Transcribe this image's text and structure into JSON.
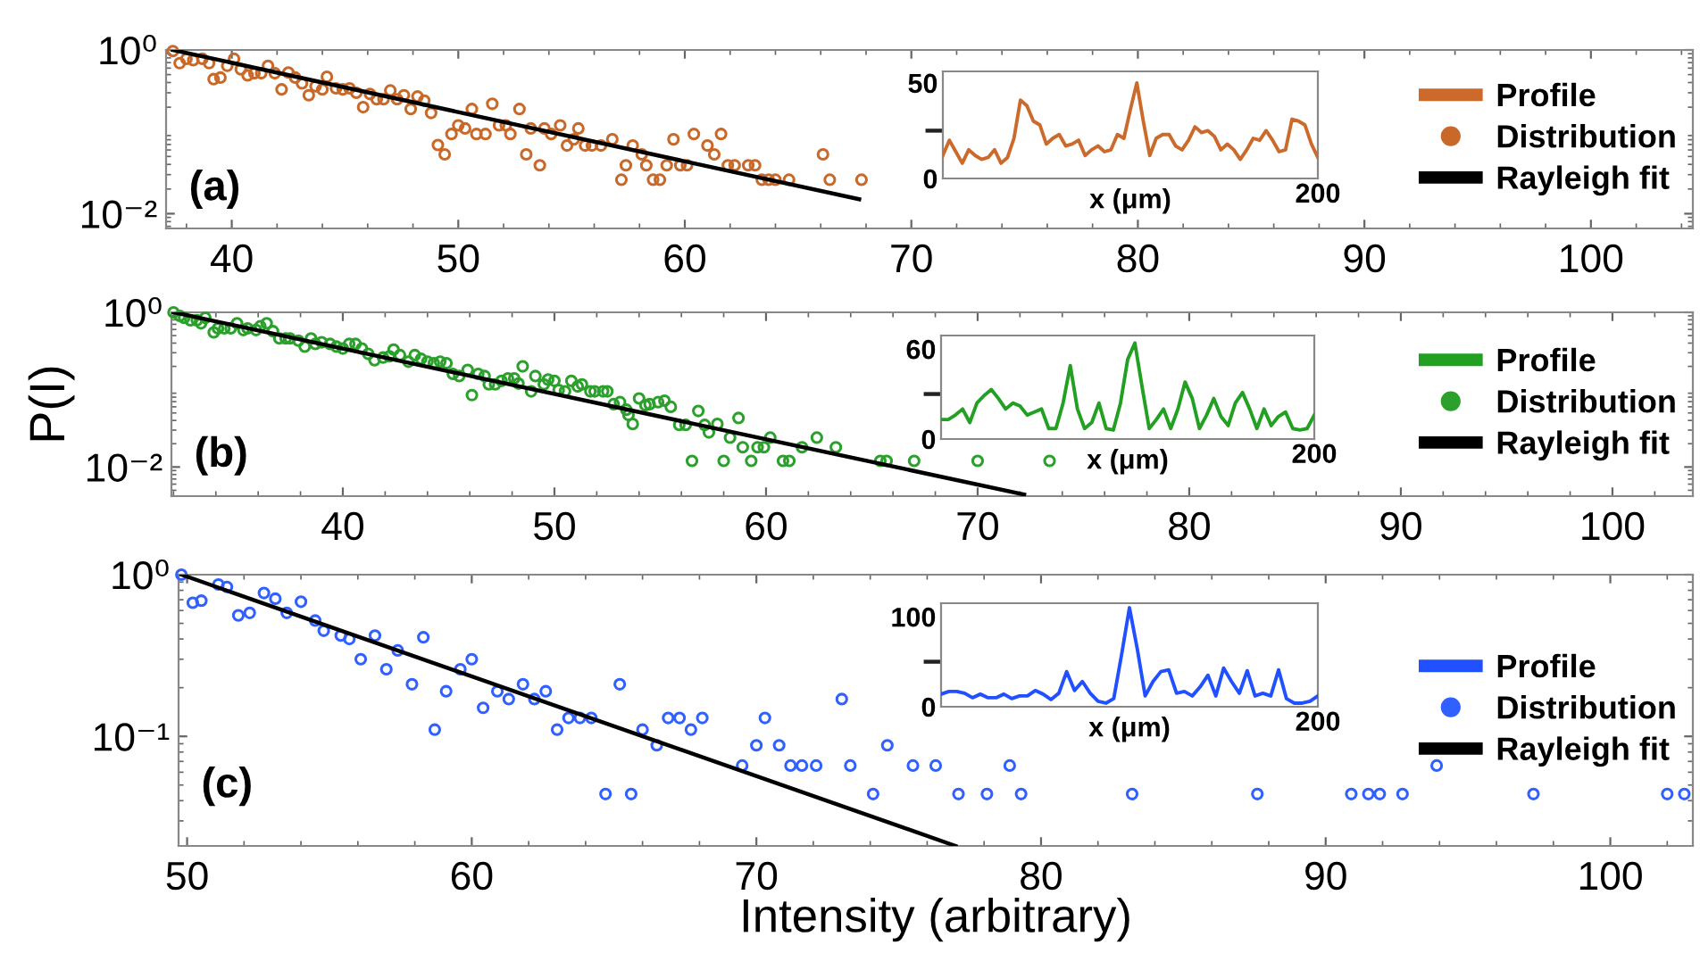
{
  "chart_data": [
    {
      "type": "scatter",
      "log": "y",
      "legend": "right",
      "annotations": [
        "(a)"
      ],
      "xlim": [
        37.1,
        104.5
      ],
      "ylim": [
        0.0066,
        1
      ],
      "xticks": [
        40,
        50,
        60,
        70,
        80,
        90,
        100
      ],
      "yticks": [
        {
          "value": 1,
          "label": "10⁰"
        },
        {
          "value": 0.01,
          "label": "10⁻²"
        }
      ],
      "series": [
        {
          "name": "Distribution",
          "type": "scatter",
          "marker": "circle",
          "color": "#c8692a",
          "x": [
            37.4,
            37.7,
            38.0,
            38.3,
            38.7,
            39.0,
            39.2,
            39.5,
            39.8,
            40.1,
            40.4,
            40.7,
            41.0,
            41.3,
            41.6,
            41.9,
            42.2,
            42.5,
            42.8,
            43.1,
            43.4,
            43.7,
            44.0,
            44.2,
            44.6,
            44.9,
            45.2,
            45.5,
            45.8,
            46.1,
            46.4,
            46.7,
            47.0,
            47.3,
            47.6,
            47.9,
            48.2,
            48.5,
            48.8,
            49.1,
            49.4,
            49.7,
            50.0,
            50.3,
            50.6,
            50.8,
            51.2,
            51.5,
            51.8,
            52.1,
            52.3,
            52.7,
            53.0,
            53.2,
            53.6,
            53.8,
            54.1,
            54.5,
            54.8,
            55.1,
            55.3,
            55.6,
            55.9,
            56.3,
            56.8,
            57.2,
            57.4,
            57.7,
            58.1,
            58.3,
            58.6,
            58.9,
            59.2,
            59.5,
            59.8,
            60.1,
            60.4,
            61.0,
            61.3,
            61.6,
            61.9,
            62.2,
            62.8,
            63.1,
            63.4,
            63.7,
            64.0,
            64.6,
            66.1,
            66.4,
            67.8
          ],
          "values": [
            0.97,
            0.69,
            0.78,
            0.75,
            0.78,
            0.69,
            0.44,
            0.46,
            0.64,
            0.78,
            0.58,
            0.49,
            0.52,
            0.52,
            0.64,
            0.52,
            0.33,
            0.53,
            0.46,
            0.39,
            0.28,
            0.36,
            0.33,
            0.47,
            0.34,
            0.33,
            0.34,
            0.3,
            0.2,
            0.29,
            0.25,
            0.25,
            0.32,
            0.25,
            0.28,
            0.19,
            0.27,
            0.24,
            0.17,
            0.069,
            0.053,
            0.094,
            0.12,
            0.11,
            0.19,
            0.094,
            0.094,
            0.22,
            0.12,
            0.12,
            0.094,
            0.19,
            0.053,
            0.11,
            0.039,
            0.11,
            0.094,
            0.12,
            0.068,
            0.081,
            0.11,
            0.068,
            0.068,
            0.068,
            0.081,
            0.026,
            0.039,
            0.068,
            0.053,
            0.039,
            0.026,
            0.026,
            0.039,
            0.081,
            0.039,
            0.039,
            0.094,
            0.068,
            0.053,
            0.094,
            0.039,
            0.039,
            0.039,
            0.039,
            0.026,
            0.026,
            0.026,
            0.026,
            0.053,
            0.026,
            0.026
          ]
        },
        {
          "name": "Rayleigh fit",
          "type": "line",
          "color": "#000000",
          "x": [
            37.4,
            67.7
          ],
          "values": [
            1.0,
            0.015
          ]
        }
      ]
    },
    {
      "type": "line",
      "xlabel": "x (μm)",
      "annotations": [
        "200"
      ],
      "ylim": [
        0,
        56
      ],
      "yticks": [
        0,
        {
          "value": 25,
          "label": null
        },
        50
      ],
      "categories": [
        null,
        null,
        null,
        null,
        null,
        null,
        null,
        null,
        null,
        null,
        null,
        null,
        null,
        null,
        null,
        null,
        null,
        null,
        null,
        null,
        null,
        null,
        null,
        null,
        null,
        null,
        null,
        null,
        null,
        null,
        null,
        null,
        null,
        null,
        null,
        null,
        null,
        null,
        null,
        null,
        null,
        null,
        null,
        null,
        null,
        null,
        null,
        null,
        null,
        null,
        null,
        null,
        null,
        null,
        null,
        null,
        null,
        null,
        null
      ],
      "series": [
        {
          "name": "Profile",
          "color": "#cc6a2c",
          "values": [
            12,
            20,
            14,
            8,
            15,
            12,
            10,
            11,
            15,
            8,
            11,
            21,
            41,
            38,
            30,
            28,
            18,
            21,
            23,
            17,
            18,
            20,
            12,
            15,
            17,
            14,
            15,
            23,
            21,
            36,
            50,
            30,
            12,
            21,
            23,
            23,
            17,
            15,
            20,
            27,
            24,
            25,
            22,
            15,
            18,
            15,
            10,
            15,
            21,
            20,
            25,
            20,
            14,
            15,
            31,
            30,
            28,
            18,
            11
          ]
        }
      ]
    },
    {
      "type": "scatter",
      "log": "y",
      "legend": "right",
      "ylabel": "P(I)",
      "annotations": [
        "(b)"
      ],
      "xlim": [
        31.9,
        103.8
      ],
      "ylim": [
        0.0042,
        1
      ],
      "xticks": [
        40,
        50,
        60,
        70,
        80,
        90,
        100
      ],
      "yticks": [
        {
          "value": 1,
          "label": "10⁰"
        },
        {
          "value": 0.01,
          "label": "10⁻²"
        }
      ],
      "series": [
        {
          "name": "Distribution",
          "type": "scatter",
          "marker": "circle",
          "color": "#2ca02c",
          "x": [
            32.0,
            32.3,
            32.5,
            32.8,
            33.1,
            33.3,
            33.5,
            33.9,
            34.1,
            34.4,
            34.7,
            35.0,
            35.3,
            35.5,
            35.9,
            36.1,
            36.4,
            36.7,
            37.0,
            37.3,
            37.5,
            37.9,
            38.2,
            38.5,
            38.7,
            39.0,
            39.4,
            39.7,
            40.0,
            40.3,
            40.6,
            40.9,
            41.2,
            41.5,
            41.9,
            42.2,
            42.4,
            42.7,
            43.1,
            43.4,
            43.7,
            44.0,
            44.3,
            44.6,
            44.9,
            45.2,
            45.5,
            45.9,
            46.1,
            46.4,
            46.7,
            46.9,
            47.2,
            47.5,
            47.8,
            48.1,
            48.3,
            48.5,
            48.9,
            49.1,
            49.5,
            49.7,
            50.0,
            50.2,
            50.5,
            50.8,
            51.1,
            51.3,
            51.7,
            51.9,
            52.3,
            52.5,
            52.8,
            53.1,
            53.4,
            53.5,
            53.7,
            54.0,
            54.3,
            54.5,
            54.9,
            55.2,
            55.5,
            55.9,
            56.2,
            56.5,
            56.8,
            57.1,
            57.3,
            57.7,
            58.0,
            58.3,
            58.7,
            58.9,
            59.3,
            59.6,
            59.9,
            60.2,
            60.8,
            61.1,
            61.7,
            62.4,
            63.3,
            65.4,
            65.7,
            67.0,
            70.0,
            73.4
          ],
          "values": [
            1.0,
            0.9,
            0.85,
            0.79,
            0.79,
            0.72,
            0.85,
            0.55,
            0.62,
            0.62,
            0.62,
            0.72,
            0.59,
            0.62,
            0.59,
            0.66,
            0.72,
            0.57,
            0.46,
            0.46,
            0.46,
            0.43,
            0.36,
            0.46,
            0.39,
            0.41,
            0.39,
            0.36,
            0.34,
            0.39,
            0.39,
            0.34,
            0.29,
            0.24,
            0.26,
            0.27,
            0.33,
            0.28,
            0.23,
            0.28,
            0.25,
            0.23,
            0.22,
            0.23,
            0.22,
            0.16,
            0.15,
            0.18,
            0.085,
            0.16,
            0.15,
            0.117,
            0.117,
            0.13,
            0.14,
            0.14,
            0.12,
            0.2,
            0.095,
            0.15,
            0.117,
            0.135,
            0.13,
            0.099,
            0.095,
            0.13,
            0.11,
            0.117,
            0.095,
            0.095,
            0.095,
            0.095,
            0.065,
            0.069,
            0.055,
            0.047,
            0.036,
            0.077,
            0.063,
            0.065,
            0.069,
            0.072,
            0.06,
            0.035,
            0.035,
            0.012,
            0.053,
            0.035,
            0.028,
            0.036,
            0.012,
            0.024,
            0.043,
            0.018,
            0.012,
            0.018,
            0.018,
            0.024,
            0.012,
            0.012,
            0.018,
            0.024,
            0.018,
            0.012,
            0.012,
            0.012,
            0.012,
            0.012
          ]
        },
        {
          "name": "Rayleigh fit",
          "type": "line",
          "color": "#000000",
          "x": [
            32.0,
            72.2
          ],
          "values": [
            1.0,
            0.0044
          ]
        }
      ]
    },
    {
      "type": "line",
      "xlabel": "x (μm)",
      "annotations": [
        "200"
      ],
      "ylim": [
        0,
        69
      ],
      "yticks": [
        0,
        {
          "value": 30,
          "label": null
        },
        60
      ],
      "categories": [
        null,
        null,
        null,
        null,
        null,
        null,
        null,
        null,
        null,
        null,
        null,
        null,
        null,
        null,
        null,
        null,
        null,
        null,
        null,
        null,
        null,
        null,
        null,
        null,
        null,
        null,
        null,
        null,
        null,
        null,
        null,
        null,
        null,
        null,
        null,
        null,
        null,
        null,
        null,
        null,
        null,
        null,
        null,
        null,
        null,
        null,
        null,
        null,
        null,
        null,
        null,
        null,
        null
      ],
      "series": [
        {
          "name": "Profile",
          "color": "#22a022",
          "values": [
            13,
            13,
            16,
            20,
            11,
            24,
            29,
            33,
            27,
            20,
            24,
            22,
            16,
            18,
            20,
            7,
            7,
            24,
            49,
            20,
            7,
            11,
            24,
            7,
            6,
            24,
            53,
            64,
            35,
            7,
            13,
            20,
            7,
            20,
            38,
            27,
            7,
            16,
            27,
            15,
            9,
            24,
            31,
            20,
            7,
            20,
            9,
            15,
            18,
            7,
            6,
            7,
            16
          ]
        }
      ]
    },
    {
      "type": "scatter",
      "log": "y",
      "legend": "right",
      "xlabel": "Intensity (arbitrary)",
      "annotations": [
        "(c)"
      ],
      "xlim": [
        49.7,
        102.9
      ],
      "ylim": [
        0.021,
        1
      ],
      "xticks": [
        50,
        60,
        70,
        80,
        90,
        100
      ],
      "yticks": [
        {
          "value": 1,
          "label": "10⁰"
        },
        {
          "value": 0.1,
          "label": "10⁻¹"
        }
      ],
      "series": [
        {
          "name": "Distribution",
          "type": "scatter",
          "marker": "circle",
          "color": "#3060ff",
          "x": [
            49.8,
            50.2,
            50.5,
            51.1,
            51.4,
            51.8,
            52.2,
            52.7,
            53.1,
            53.5,
            54.0,
            54.5,
            54.8,
            55.4,
            55.7,
            56.1,
            56.6,
            57.0,
            57.4,
            57.9,
            58.3,
            58.7,
            59.1,
            59.6,
            60.0,
            60.4,
            60.9,
            61.3,
            61.8,
            62.2,
            62.6,
            63.0,
            63.4,
            63.8,
            64.2,
            64.7,
            65.2,
            65.6,
            66.0,
            66.5,
            66.9,
            67.3,
            67.7,
            68.1,
            69.5,
            70.0,
            70.3,
            70.8,
            71.2,
            71.6,
            72.1,
            73.0,
            73.3,
            74.1,
            74.6,
            75.5,
            76.3,
            77.1,
            78.1,
            78.9,
            79.3,
            83.2,
            87.6,
            90.9,
            91.5,
            91.9,
            92.7,
            93.9,
            97.3,
            102.0,
            102.6
          ],
          "values": [
            1.0,
            0.67,
            0.69,
            0.87,
            0.84,
            0.56,
            0.58,
            0.77,
            0.71,
            0.58,
            0.68,
            0.52,
            0.45,
            0.42,
            0.4,
            0.3,
            0.42,
            0.26,
            0.34,
            0.21,
            0.41,
            0.11,
            0.19,
            0.26,
            0.3,
            0.15,
            0.19,
            0.17,
            0.21,
            0.17,
            0.19,
            0.11,
            0.13,
            0.13,
            0.13,
            0.044,
            0.21,
            0.044,
            0.11,
            0.088,
            0.13,
            0.13,
            0.11,
            0.13,
            0.066,
            0.088,
            0.13,
            0.088,
            0.066,
            0.066,
            0.066,
            0.17,
            0.066,
            0.044,
            0.088,
            0.066,
            0.066,
            0.044,
            0.044,
            0.066,
            0.044,
            0.044,
            0.044,
            0.044,
            0.044,
            0.044,
            0.044,
            0.066,
            0.044,
            0.044,
            0.044
          ]
        },
        {
          "name": "Rayleigh fit",
          "type": "line",
          "color": "#000000",
          "x": [
            49.8,
            77.0
          ],
          "values": [
            1.0,
            0.021
          ]
        }
      ]
    },
    {
      "type": "line",
      "xlabel": "x (μm)",
      "annotations": [
        "200"
      ],
      "ylim": [
        0,
        115
      ],
      "yticks": [
        0,
        {
          "value": 50,
          "label": null
        },
        100
      ],
      "categories": [
        null,
        null,
        null,
        null,
        null,
        null,
        null,
        null,
        null,
        null,
        null,
        null,
        null,
        null,
        null,
        null,
        null,
        null,
        null,
        null,
        null,
        null,
        null,
        null,
        null,
        null,
        null,
        null,
        null,
        null,
        null,
        null,
        null,
        null,
        null,
        null,
        null,
        null,
        null,
        null,
        null,
        null,
        null,
        null,
        null,
        null,
        null,
        null,
        null
      ],
      "series": [
        {
          "name": "Profile",
          "color": "#2050ff",
          "values": [
            14,
            17,
            17,
            15,
            10,
            14,
            10,
            10,
            14,
            9,
            12,
            12,
            18,
            14,
            8,
            15,
            39,
            18,
            28,
            15,
            6,
            4,
            9,
            58,
            110,
            64,
            12,
            28,
            39,
            41,
            15,
            17,
            12,
            22,
            35,
            12,
            43,
            28,
            15,
            40,
            12,
            15,
            12,
            41,
            9,
            4,
            4,
            6,
            12
          ]
        }
      ]
    }
  ]
}
